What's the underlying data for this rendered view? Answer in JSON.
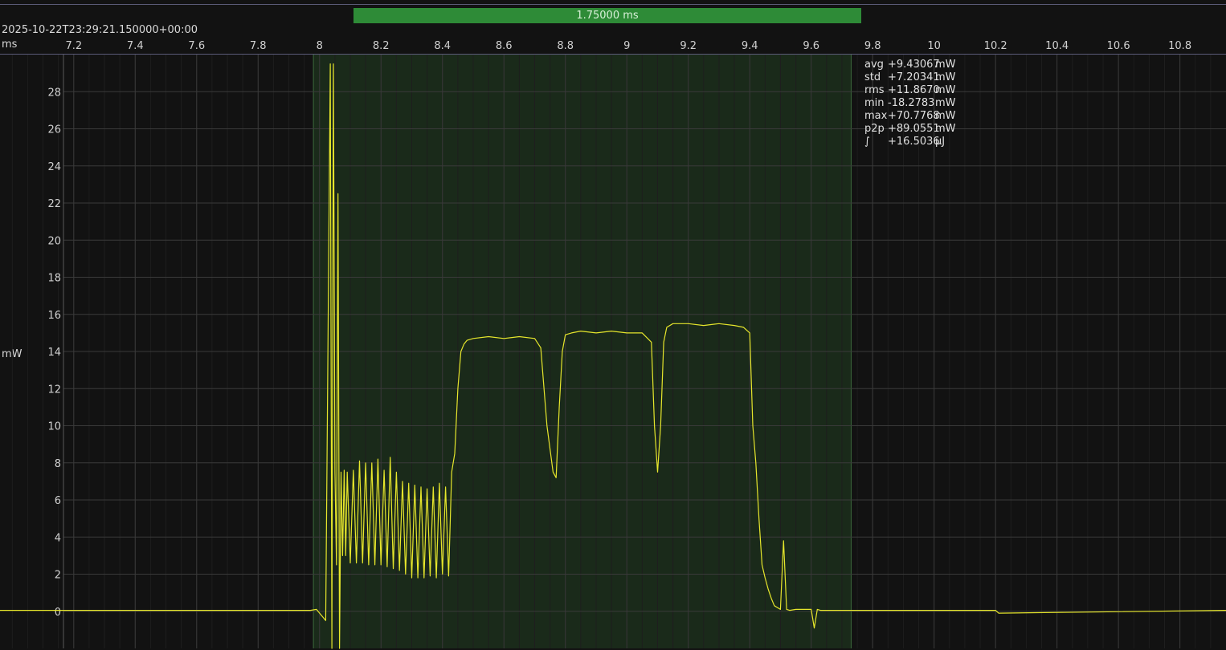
{
  "header": {
    "timestamp": "2025-10-22T23:29:21.150000+00:00",
    "x_unit": "ms",
    "y_unit": "mW",
    "selection_label": "1.75000 ms"
  },
  "stats": [
    {
      "key": "avg",
      "value": "+9.43067",
      "unit": "mW"
    },
    {
      "key": "std",
      "value": "+7.20341",
      "unit": "mW"
    },
    {
      "key": "rms",
      "value": "+11.8670",
      "unit": "mW"
    },
    {
      "key": "min",
      "value": "-18.2783",
      "unit": "mW"
    },
    {
      "key": "max",
      "value": "+70.7768",
      "unit": "mW"
    },
    {
      "key": "p2p",
      "value": "+89.0551",
      "unit": "mW"
    },
    {
      "key": "∫",
      "value": "+16.5036",
      "unit": "µJ"
    }
  ],
  "colors": {
    "background": "#121212",
    "trace": "#e6e62c",
    "selection_fill": "#1a2a1a",
    "selection_band": "#2e8b37",
    "grid": "#3a3a3a"
  },
  "chart_data": {
    "type": "line",
    "title": "",
    "xlabel": "ms",
    "ylabel": "mW",
    "xlim": [
      6.96,
      10.95
    ],
    "ylim": [
      -2,
      30
    ],
    "x_ticks": [
      7.2,
      7.4,
      7.6,
      7.8,
      8,
      8.2,
      8.4,
      8.6,
      8.8,
      9,
      9.2,
      9.4,
      9.6,
      9.8,
      10,
      10.2,
      10.4,
      10.6,
      10.8
    ],
    "x_tick_labels": [
      "7.2",
      "7.4",
      "7.6",
      "7.8",
      "8",
      "8.2",
      "8.4",
      "8.6",
      "8.8",
      "9",
      "9.2",
      "9.4",
      "9.6",
      "9.8",
      "10",
      "10.2",
      "10.4",
      "10.6",
      "10.8"
    ],
    "y_ticks": [
      0,
      2,
      4,
      6,
      8,
      10,
      12,
      14,
      16,
      18,
      20,
      22,
      24,
      26,
      28
    ],
    "y_tick_labels": [
      "0",
      "2",
      "4",
      "6",
      "8",
      "10",
      "12",
      "14",
      "16",
      "18",
      "20",
      "22",
      "24",
      "26",
      "28"
    ],
    "grid": true,
    "selection": {
      "x_start": 7.98,
      "x_end": 9.73,
      "duration_ms": 1.75
    },
    "series": [
      {
        "x": [
          6.96,
          7.97,
          7.99,
          8.02,
          8.035,
          8.04,
          8.045,
          8.05,
          8.055,
          8.06,
          8.065,
          8.07,
          8.075,
          8.08,
          8.085,
          8.09,
          8.1,
          8.11,
          8.12,
          8.13,
          8.14,
          8.15,
          8.16,
          8.17,
          8.18,
          8.19,
          8.2,
          8.21,
          8.22,
          8.23,
          8.24,
          8.25,
          8.26,
          8.27,
          8.28,
          8.29,
          8.3,
          8.31,
          8.32,
          8.33,
          8.34,
          8.35,
          8.36,
          8.37,
          8.38,
          8.39,
          8.4,
          8.41,
          8.42,
          8.43,
          8.44,
          8.45,
          8.46,
          8.47,
          8.48,
          8.5,
          8.55,
          8.6,
          8.65,
          8.7,
          8.72,
          8.74,
          8.76,
          8.77,
          8.78,
          8.79,
          8.8,
          8.82,
          8.85,
          8.9,
          8.95,
          9.0,
          9.05,
          9.08,
          9.09,
          9.1,
          9.11,
          9.12,
          9.13,
          9.15,
          9.2,
          9.25,
          9.3,
          9.35,
          9.38,
          9.4,
          9.41,
          9.42,
          9.43,
          9.44,
          9.45,
          9.46,
          9.47,
          9.48,
          9.5,
          9.51,
          9.52,
          9.53,
          9.55,
          9.6,
          9.61,
          9.62,
          9.63,
          9.7,
          10.2,
          10.21,
          10.95
        ],
        "y": [
          0.05,
          0.05,
          0.1,
          -0.5,
          29.5,
          -2,
          29.5,
          7.5,
          2.5,
          22.5,
          -2,
          7.5,
          3,
          7.6,
          3,
          7.5,
          2.6,
          7.6,
          2.6,
          8.1,
          2.6,
          8.0,
          2.5,
          8.0,
          2.5,
          8.2,
          2.5,
          7.6,
          2.4,
          8.3,
          2.3,
          7.5,
          2.2,
          7.0,
          2.0,
          6.9,
          1.8,
          6.8,
          1.8,
          6.7,
          1.8,
          6.6,
          1.9,
          6.7,
          1.8,
          6.9,
          2.0,
          6.7,
          1.9,
          7.5,
          8.5,
          12.0,
          14.0,
          14.4,
          14.6,
          14.7,
          14.8,
          14.7,
          14.8,
          14.7,
          14.2,
          10.0,
          7.5,
          7.2,
          11.0,
          14.0,
          14.9,
          15.0,
          15.1,
          15.0,
          15.1,
          15.0,
          15.0,
          14.5,
          10.0,
          7.5,
          10.0,
          14.5,
          15.3,
          15.5,
          15.5,
          15.4,
          15.5,
          15.4,
          15.3,
          15.0,
          10.0,
          8.0,
          5.0,
          2.5,
          1.8,
          1.2,
          0.7,
          0.3,
          0.1,
          3.8,
          0.1,
          0.05,
          0.1,
          0.1,
          -0.9,
          0.1,
          0.05,
          0.05,
          0.05,
          -0.1,
          0.05
        ]
      }
    ]
  }
}
